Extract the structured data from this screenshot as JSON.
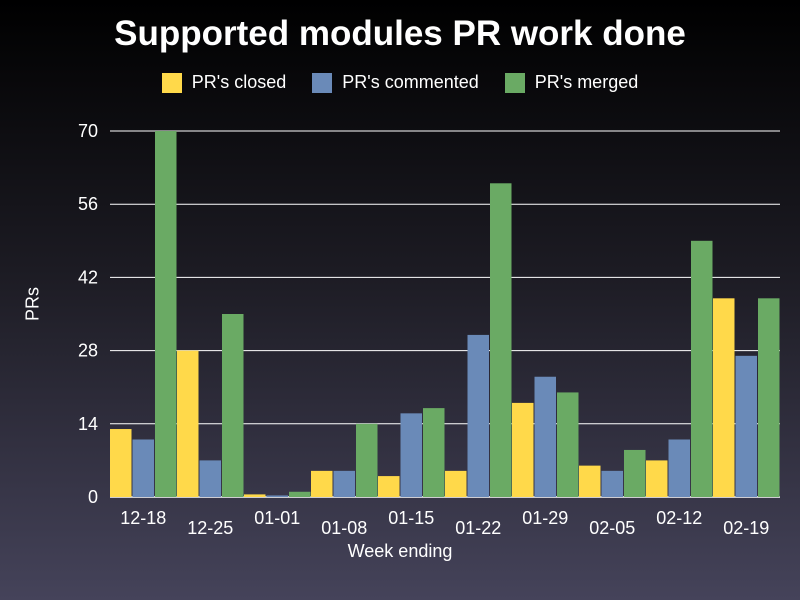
{
  "chart_data": {
    "type": "bar",
    "title": "Supported modules PR work done",
    "xlabel": "Week ending",
    "ylabel": "PRs",
    "ylim": [
      0,
      70
    ],
    "yticks": [
      0,
      14,
      28,
      42,
      56,
      70
    ],
    "grid": true,
    "legend_position": "top",
    "categories": [
      "12-18",
      "12-25",
      "01-01",
      "01-08",
      "01-15",
      "01-22",
      "01-29",
      "02-05",
      "02-12",
      "02-19"
    ],
    "series": [
      {
        "name": "PR's closed",
        "color": "#ffd94a",
        "values": [
          13,
          28,
          0.5,
          5,
          4,
          5,
          18,
          6,
          7,
          38
        ]
      },
      {
        "name": "PR's commented",
        "color": "#6a8ab8",
        "values": [
          11,
          7,
          0.3,
          5,
          16,
          31,
          23,
          5,
          11,
          27
        ]
      },
      {
        "name": "PR's merged",
        "color": "#6aaa64",
        "values": [
          70,
          35,
          1,
          14,
          17,
          60,
          20,
          9,
          49,
          38
        ]
      }
    ]
  }
}
